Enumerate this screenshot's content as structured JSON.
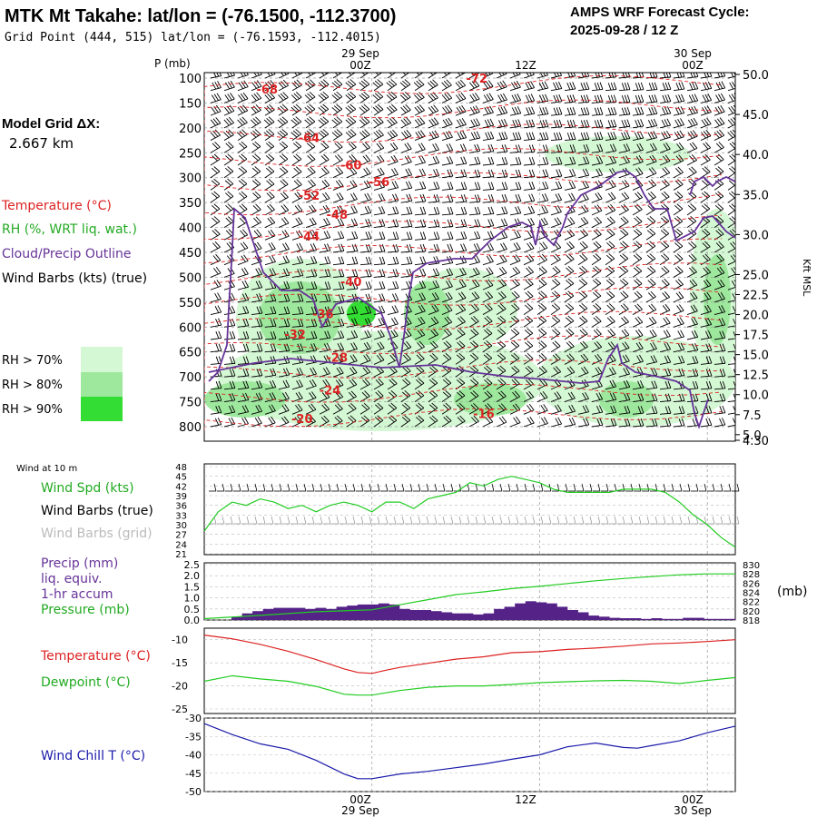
{
  "header": {
    "title": "MTK Mt Takahe:  lat/lon = (-76.1500, -112.3700)",
    "subtitle": "Grid Point (444, 515) lat/lon = (-76.1593, -112.4015)",
    "forecast_line1": "AMPS WRF Forecast Cycle:",
    "forecast_line2": "2025-09-28 / 12  Z"
  },
  "model_grid": {
    "line1": "Model Grid ΔX:",
    "line2": "2.667 km"
  },
  "time_axis": {
    "top_dates": [
      "29 Sep",
      "30 Sep"
    ],
    "ticks": [
      "00Z",
      "12Z",
      "00Z"
    ],
    "bottom_ticks": [
      "00Z",
      "12Z",
      "00Z"
    ],
    "bottom_dates": [
      "29 Sep",
      "30 Sep"
    ]
  },
  "colors": {
    "temperature": "#dd2222",
    "rh_text": "#22aa22",
    "cloud": "#663399",
    "rh70": "#d4f7d4",
    "rh80": "#9ee89e",
    "rh90": "#33dd33",
    "windchill": "#1a1aaa",
    "precip_bar": "#552288"
  },
  "legend": {
    "temperature": "Temperature (°C)",
    "rh": "RH (%, WRT liq. wat.)",
    "cloud": "Cloud/Precip Outline",
    "barbs": "Wind Barbs (kts) (true)",
    "rh70": "RH > 70%",
    "rh80": "RH > 80%",
    "rh90": "RH > 90%"
  },
  "panels": {
    "wind_title": "Wind at 10 m",
    "wind_spd": "Wind Spd (kts)",
    "wind_barbs_true": "Wind Barbs (true)",
    "wind_barbs_grid": "Wind Barbs (grid)",
    "precip": "Precip (mm)",
    "precip2": "liq. equiv.",
    "precip3": "1-hr accum",
    "pressure": "Pressure (mb)",
    "mb_unit": "(mb)",
    "temperature": "Temperature (°C)",
    "dewpoint": "Dewpoint (°C)",
    "windchill": "Wind Chill T (°C)"
  },
  "chart_data": [
    {
      "type": "heatmap",
      "name": "profile",
      "ylabel_left": "P (mb)",
      "ylabel_right": "Kft MSL",
      "pressure_ticks": [
        "100",
        "150",
        "200",
        "250",
        "300",
        "350",
        "400",
        "450",
        "500",
        "550",
        "600",
        "650",
        "700",
        "750",
        "800"
      ],
      "kft_ticks": [
        "50.0",
        "45.0",
        "40.0",
        "35.0",
        "30.0",
        "25.0",
        "22.5",
        "20.0",
        "17.5",
        "15.0",
        "12.5",
        "10.0",
        "7.5",
        "5.0",
        "4.30"
      ],
      "kft_values": [
        50.0,
        45.0,
        40.0,
        35.0,
        30.0,
        25.0,
        22.5,
        20.0,
        17.5,
        15.0,
        12.5,
        10.0,
        7.5,
        5.0,
        4.3
      ],
      "temperature_labels": [
        {
          "text": "-72",
          "t": 19.5,
          "p": 102
        },
        {
          "text": "-68",
          "t": 4.5,
          "p": 124
        },
        {
          "text": "-64",
          "t": 7.5,
          "p": 221
        },
        {
          "text": "-60",
          "t": 10.5,
          "p": 276
        },
        {
          "text": "-56",
          "t": 12.5,
          "p": 310
        },
        {
          "text": "-52",
          "t": 7.5,
          "p": 337
        },
        {
          "text": "-48",
          "t": 9.5,
          "p": 375
        },
        {
          "text": "-44",
          "t": 7.5,
          "p": 419
        },
        {
          "text": "-40",
          "t": 10.5,
          "p": 510
        },
        {
          "text": "-36",
          "t": 8.5,
          "p": 575
        },
        {
          "text": "-32",
          "t": 6.5,
          "p": 616
        },
        {
          "text": "-28",
          "t": 9.5,
          "p": 662
        },
        {
          "text": "-24",
          "t": 9.0,
          "p": 728
        },
        {
          "text": "-20",
          "t": 7.0,
          "p": 785
        },
        {
          "text": "-16",
          "t": 20.0,
          "p": 775
        }
      ]
    },
    {
      "type": "line",
      "name": "wind_speed",
      "ylim": [
        21,
        48
      ],
      "yticks": [
        "48",
        "45",
        "42",
        "39",
        "36",
        "33",
        "30",
        "27",
        "24",
        "21"
      ],
      "x": [
        0,
        1,
        2,
        3,
        4,
        5,
        6,
        7,
        8,
        9,
        10,
        11,
        12,
        13,
        14,
        15,
        16,
        17,
        18,
        19,
        20,
        21,
        22,
        23,
        24,
        25,
        26,
        27,
        28,
        29,
        30,
        31,
        32,
        33,
        34,
        35,
        36,
        37,
        38
      ],
      "values": [
        28,
        34,
        37,
        36,
        38,
        37,
        35,
        36,
        34,
        36,
        37,
        36,
        34,
        37,
        37,
        35,
        38,
        39,
        40,
        43,
        42,
        44,
        45,
        44,
        43,
        41,
        40,
        40,
        40,
        40,
        41,
        41,
        41,
        40,
        37,
        33,
        30,
        26,
        23
      ]
    },
    {
      "type": "bar",
      "name": "precip_pressure",
      "precip_ylim": [
        0,
        2.5
      ],
      "precip_yticks": [
        "2.5",
        "2.0",
        "1.5",
        "1.0",
        "0.5",
        "0.0"
      ],
      "pressure_ylim": [
        818,
        830
      ],
      "pressure_yticks": [
        "830",
        "828",
        "826",
        "824",
        "822",
        "820",
        "818"
      ],
      "precip": [
        0.15,
        0.3,
        0.4,
        0.5,
        0.55,
        0.55,
        0.55,
        0.5,
        0.55,
        0.5,
        0.6,
        0.65,
        0.7,
        0.7,
        0.75,
        0.7,
        0.5,
        0.45,
        0.45,
        0.4,
        0.35,
        0.3,
        0.3,
        0.25,
        0.3,
        0.5,
        0.6,
        0.75,
        0.85,
        0.8,
        0.75,
        0.6,
        0.45,
        0.35,
        0.2,
        0.15,
        0.1,
        0.08,
        0.08,
        0.05,
        0.08,
        0.05,
        0.05,
        0.1,
        0.1,
        0.05,
        0.05,
        0.05
      ],
      "pressure_x": [
        0,
        4,
        8,
        12,
        14,
        16,
        18,
        20,
        22,
        24,
        26,
        28,
        30,
        32,
        34,
        36,
        38
      ],
      "pressure": [
        818.3,
        819.0,
        819.8,
        820.2,
        821.3,
        822.4,
        823.5,
        824.1,
        824.8,
        825.3,
        825.9,
        826.5,
        827.0,
        827.4,
        827.8,
        828.0,
        828.0
      ]
    },
    {
      "type": "line",
      "name": "temperature_dewpoint",
      "ylim": [
        -25,
        -7.5
      ],
      "yticks": [
        "-10",
        "-15",
        "-20",
        "-25"
      ],
      "x": [
        0,
        2,
        4,
        6,
        8,
        10,
        11,
        12,
        13,
        14,
        16,
        18,
        20,
        22,
        24,
        26,
        28,
        30,
        32,
        34,
        36,
        38
      ],
      "temperature": [
        -9.0,
        -9.8,
        -11.0,
        -12.5,
        -14.3,
        -16.3,
        -17.1,
        -17.3,
        -16.6,
        -16.0,
        -15.1,
        -14.2,
        -13.7,
        -12.8,
        -12.6,
        -12.1,
        -11.8,
        -11.4,
        -10.9,
        -10.7,
        -10.4,
        -10.0
      ],
      "dewpoint": [
        -19.0,
        -17.8,
        -18.5,
        -19.0,
        -20.1,
        -21.8,
        -22.0,
        -22.0,
        -21.5,
        -21.0,
        -20.3,
        -20.0,
        -20.0,
        -19.7,
        -19.3,
        -19.1,
        -18.9,
        -18.8,
        -19.0,
        -19.5,
        -18.8,
        -18.2
      ]
    },
    {
      "type": "line",
      "name": "wind_chill",
      "ylim": [
        -50,
        -30
      ],
      "yticks": [
        "-30",
        "-35",
        "-40",
        "-45",
        "-50"
      ],
      "x": [
        0,
        2,
        4,
        6,
        8,
        10,
        11,
        12,
        14,
        16,
        18,
        20,
        22,
        24,
        26,
        28,
        30,
        31,
        32,
        34,
        36,
        38
      ],
      "values": [
        -31.5,
        -34.5,
        -37.0,
        -38.5,
        -41.5,
        -45.2,
        -46.5,
        -46.5,
        -45.2,
        -44.5,
        -43.5,
        -42.5,
        -41.2,
        -40.0,
        -37.8,
        -36.8,
        -38.0,
        -38.2,
        -37.5,
        -36.2,
        -34.0,
        -32.2
      ]
    }
  ]
}
